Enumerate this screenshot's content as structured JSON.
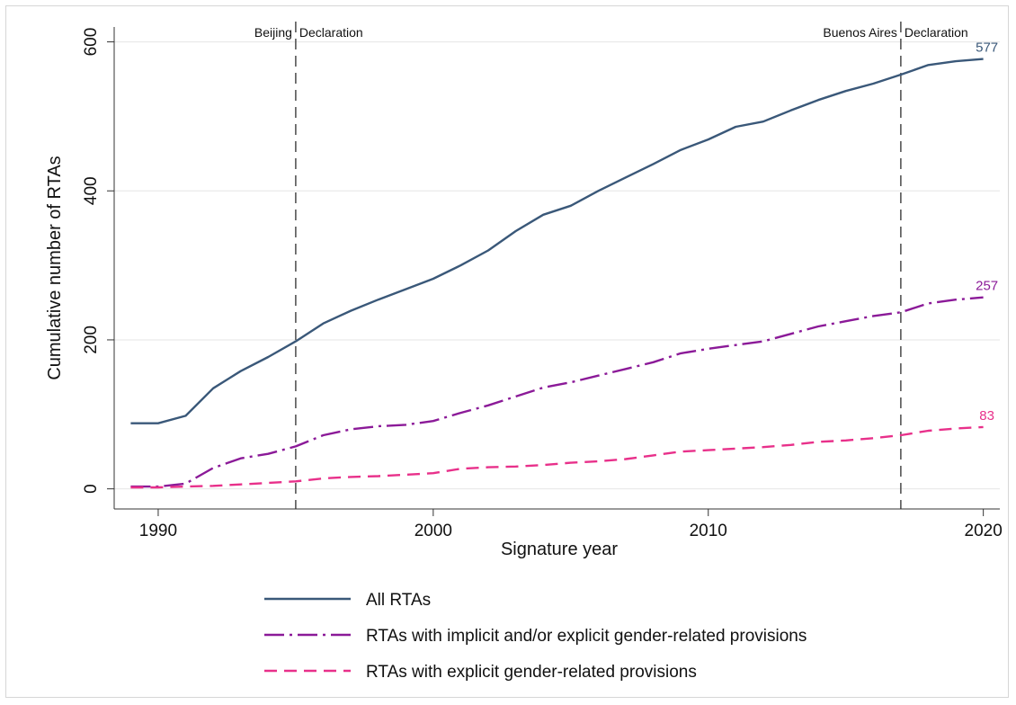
{
  "chart_data": {
    "type": "line",
    "title": "",
    "xlabel": "Signature year",
    "ylabel": "Cumulative number of RTAs",
    "xlim": [
      1988.4,
      2020.6
    ],
    "ylim": [
      -27,
      620
    ],
    "x_ticks": [
      1990,
      2000,
      2010,
      2020
    ],
    "y_ticks": [
      0,
      200,
      400,
      600
    ],
    "grid": true,
    "legend_position": "bottom",
    "x": [
      1989,
      1990,
      1991,
      1992,
      1993,
      1994,
      1995,
      1996,
      1997,
      1998,
      1999,
      2000,
      2001,
      2002,
      2003,
      2004,
      2005,
      2006,
      2007,
      2008,
      2009,
      2010,
      2011,
      2012,
      2013,
      2014,
      2015,
      2016,
      2017,
      2018,
      2019,
      2020
    ],
    "series": [
      {
        "name": "All RTAs",
        "color": "#3a5879",
        "style": "solid",
        "end_label": "577",
        "values": [
          88,
          88,
          98,
          135,
          158,
          177,
          198,
          222,
          239,
          254,
          268,
          282,
          300,
          320,
          346,
          368,
          380,
          400,
          418,
          436,
          455,
          469,
          486,
          493,
          508,
          522,
          534,
          544,
          556,
          569,
          574,
          577
        ]
      },
      {
        "name": "RTAs with implicit and/or explicit gender-related provisions",
        "color": "#8b1a98",
        "style": "dashdot",
        "end_label": "257",
        "values": [
          3,
          3,
          7,
          28,
          41,
          47,
          57,
          72,
          80,
          84,
          86,
          91,
          102,
          112,
          124,
          136,
          143,
          152,
          161,
          170,
          182,
          188,
          193,
          198,
          208,
          218,
          225,
          232,
          237,
          249,
          254,
          257
        ]
      },
      {
        "name": "RTAs with explicit gender-related provisions",
        "color": "#e8308a",
        "style": "dashed",
        "end_label": "83",
        "values": [
          2,
          2,
          3,
          4,
          6,
          8,
          10,
          14,
          16,
          17,
          19,
          21,
          27,
          29,
          30,
          32,
          35,
          37,
          40,
          45,
          50,
          52,
          54,
          56,
          59,
          63,
          65,
          68,
          72,
          78,
          81,
          83
        ]
      }
    ],
    "reference_lines": [
      {
        "x": 1995,
        "left_text": "Beijing",
        "right_text": "Declaration"
      },
      {
        "x": 2017,
        "left_text": "Buenos Aires",
        "right_text": "Declaration"
      }
    ]
  }
}
